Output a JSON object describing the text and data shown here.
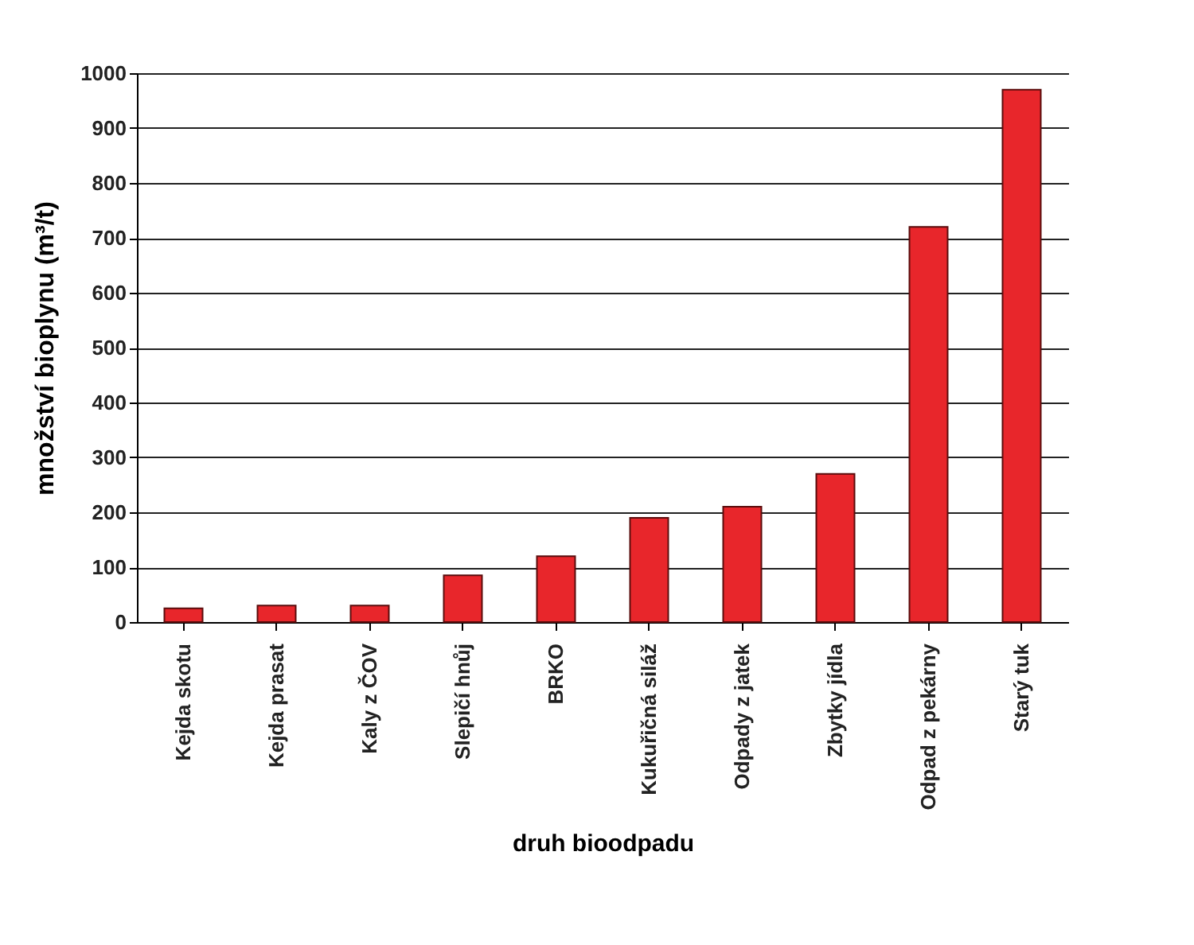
{
  "chart_data": {
    "type": "bar",
    "xlabel": "druh bioodpadu",
    "ylabel": "množství bioplynu (m³/t)",
    "categories": [
      "Kejda skotu",
      "Kejda prasat",
      "Kaly z ČOV",
      "Slepičí hnůj",
      "BRKO",
      "Kukuřičná siláž",
      "Odpady z jatek",
      "Zbytky jídla",
      "Odpad z pekárny",
      "Starý tuk"
    ],
    "values": [
      25,
      30,
      30,
      85,
      120,
      190,
      210,
      270,
      720,
      970
    ],
    "color": "#e8262b",
    "ylim": [
      0,
      1000
    ],
    "yticks": [
      0,
      100,
      200,
      300,
      400,
      500,
      600,
      700,
      800,
      900,
      1000
    ],
    "grid": "y"
  }
}
